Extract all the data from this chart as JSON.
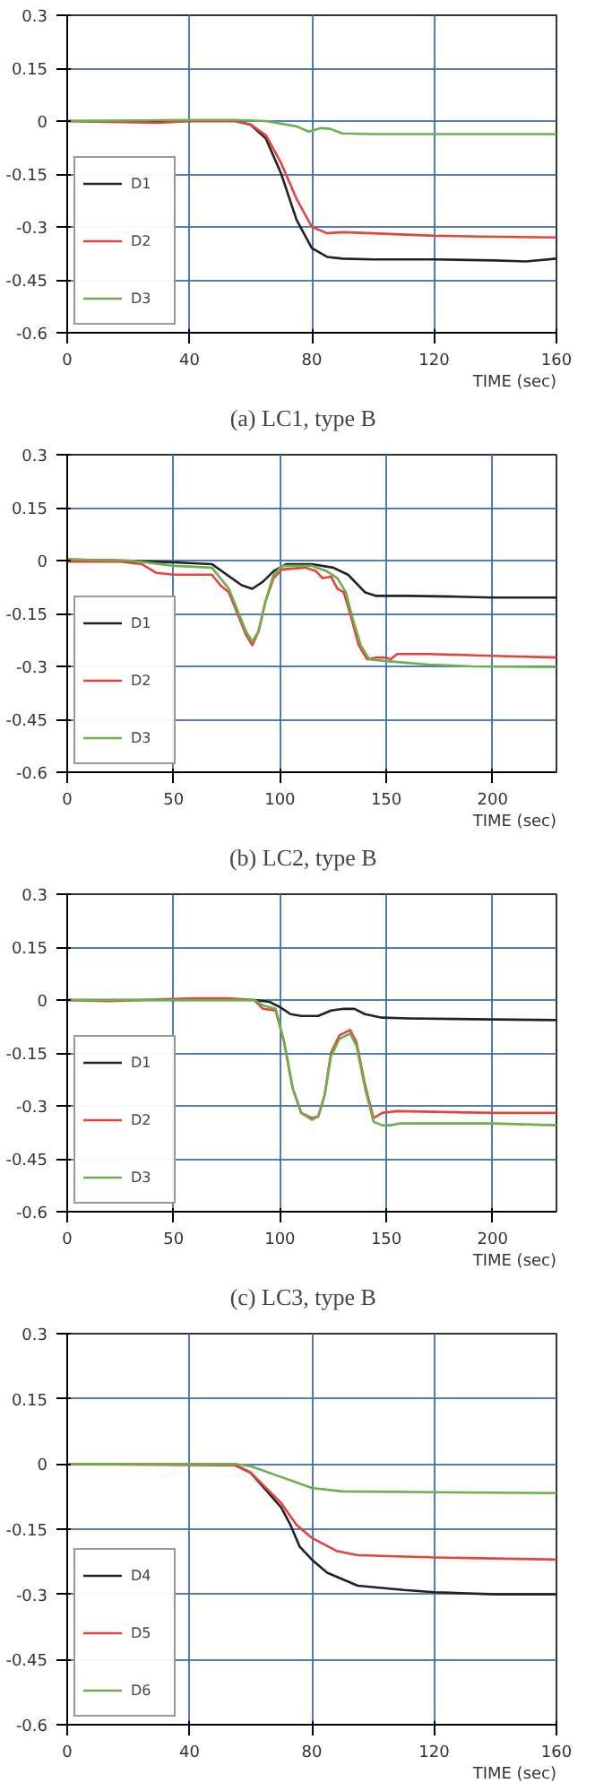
{
  "chart_data": [
    {
      "type": "line",
      "title": "(a)  LC1,  type  B",
      "xlabel": "TIME (sec)",
      "xlim": [
        0,
        160
      ],
      "xticks": [
        0,
        40,
        80,
        120,
        160
      ],
      "ylim": [
        -0.6,
        0.3
      ],
      "yticks": [
        -0.6,
        -0.45,
        -0.3,
        -0.15,
        0,
        0.15,
        0.3
      ],
      "grid": true,
      "legend": "bottom left",
      "marker": "none",
      "line_style": "solid",
      "series": [
        {
          "name": "D1",
          "color": "#222222",
          "x": [
            0,
            55,
            60,
            65,
            70,
            75,
            80,
            85,
            90,
            100,
            120,
            140,
            150,
            160
          ],
          "values": [
            0,
            0,
            -0.01,
            -0.05,
            -0.15,
            -0.28,
            -0.36,
            -0.385,
            -0.39,
            -0.392,
            -0.392,
            -0.395,
            -0.398,
            -0.39
          ]
        },
        {
          "name": "D2",
          "color": "#e8423a",
          "x": [
            0,
            30,
            40,
            55,
            60,
            65,
            70,
            75,
            80,
            85,
            90,
            100,
            120,
            140,
            160
          ],
          "values": [
            0,
            -0.005,
            0,
            0,
            -0.01,
            -0.04,
            -0.12,
            -0.22,
            -0.3,
            -0.318,
            -0.315,
            -0.318,
            -0.325,
            -0.328,
            -0.33
          ]
        },
        {
          "name": "D3",
          "color": "#6ab04c",
          "x": [
            0,
            40,
            55,
            65,
            75,
            79,
            83,
            86,
            90,
            100,
            120,
            160
          ],
          "values": [
            0,
            0.003,
            0.003,
            0,
            -0.015,
            -0.03,
            -0.02,
            -0.022,
            -0.035,
            -0.037,
            -0.037,
            -0.037
          ]
        }
      ]
    },
    {
      "type": "line",
      "title": "(b)  LC2,  type  B",
      "xlabel": "TIME (sec)",
      "xlim": [
        0,
        230
      ],
      "xticks": [
        0,
        50,
        100,
        150,
        200
      ],
      "ylim": [
        -0.6,
        0.3
      ],
      "yticks": [
        -0.6,
        -0.45,
        -0.3,
        -0.15,
        0,
        0.15,
        0.3
      ],
      "grid": true,
      "legend": "bottom left",
      "marker": "none",
      "line_style": "solid",
      "series": [
        {
          "name": "D1",
          "color": "#222222",
          "x": [
            0,
            25,
            50,
            68,
            75,
            82,
            87,
            92,
            97,
            103,
            115,
            125,
            132,
            140,
            145,
            160,
            180,
            200,
            230
          ],
          "values": [
            0.003,
            0,
            -0.005,
            -0.01,
            -0.04,
            -0.07,
            -0.08,
            -0.06,
            -0.03,
            -0.01,
            -0.01,
            -0.02,
            -0.04,
            -0.09,
            -0.1,
            -0.1,
            -0.102,
            -0.105,
            -0.105
          ]
        },
        {
          "name": "D2",
          "color": "#e8423a",
          "x": [
            0,
            25,
            35,
            42,
            50,
            68,
            72,
            76,
            80,
            84,
            87,
            90,
            93,
            97,
            101,
            112,
            117,
            120,
            124,
            127,
            130,
            133,
            137,
            141,
            145,
            150,
            152,
            155,
            170,
            200,
            230
          ],
          "values": [
            -0.003,
            -0.003,
            -0.01,
            -0.035,
            -0.04,
            -0.04,
            -0.07,
            -0.09,
            -0.15,
            -0.21,
            -0.24,
            -0.2,
            -0.12,
            -0.05,
            -0.025,
            -0.02,
            -0.03,
            -0.05,
            -0.045,
            -0.08,
            -0.09,
            -0.15,
            -0.24,
            -0.28,
            -0.275,
            -0.275,
            -0.28,
            -0.265,
            -0.265,
            -0.27,
            -0.275
          ]
        },
        {
          "name": "D3",
          "color": "#6ab04c",
          "x": [
            0,
            30,
            50,
            68,
            72,
            76,
            80,
            84,
            87,
            90,
            93,
            97,
            101,
            115,
            122,
            127,
            131,
            134,
            138,
            142,
            150,
            170,
            190,
            230
          ],
          "values": [
            0.003,
            0,
            -0.015,
            -0.02,
            -0.05,
            -0.08,
            -0.14,
            -0.2,
            -0.23,
            -0.2,
            -0.12,
            -0.04,
            -0.015,
            -0.015,
            -0.03,
            -0.05,
            -0.09,
            -0.16,
            -0.24,
            -0.28,
            -0.285,
            -0.295,
            -0.3,
            -0.302
          ]
        }
      ]
    },
    {
      "type": "line",
      "title": "(c)  LC3,  type  B",
      "xlabel": "TIME (sec)",
      "xlim": [
        0,
        230
      ],
      "xticks": [
        0,
        50,
        100,
        150,
        200
      ],
      "ylim": [
        -0.6,
        0.3
      ],
      "yticks": [
        -0.6,
        -0.45,
        -0.3,
        -0.15,
        0,
        0.15,
        0.3
      ],
      "grid": true,
      "legend": "bottom left",
      "marker": "none",
      "line_style": "solid",
      "series": [
        {
          "name": "D1",
          "color": "#222222",
          "x": [
            0,
            88,
            95,
            100,
            105,
            110,
            118,
            124,
            130,
            135,
            140,
            148,
            160,
            200,
            230
          ],
          "values": [
            0,
            0,
            -0.005,
            -0.02,
            -0.04,
            -0.045,
            -0.045,
            -0.03,
            -0.025,
            -0.025,
            -0.04,
            -0.05,
            -0.052,
            -0.055,
            -0.057
          ]
        },
        {
          "name": "D2",
          "color": "#e8423a",
          "x": [
            0,
            20,
            50,
            60,
            75,
            88,
            92,
            98,
            102,
            106,
            110,
            115,
            118,
            121,
            124,
            128,
            133,
            136,
            140,
            144,
            148,
            155,
            200,
            230
          ],
          "values": [
            0,
            -0.003,
            0.003,
            0.005,
            0.005,
            0,
            -0.025,
            -0.03,
            -0.12,
            -0.25,
            -0.32,
            -0.335,
            -0.33,
            -0.27,
            -0.15,
            -0.1,
            -0.085,
            -0.12,
            -0.24,
            -0.335,
            -0.32,
            -0.315,
            -0.32,
            -0.32
          ]
        },
        {
          "name": "D3",
          "color": "#6ab04c",
          "x": [
            0,
            50,
            88,
            92,
            98,
            102,
            106,
            110,
            115,
            118,
            121,
            124,
            128,
            133,
            136,
            140,
            144,
            148,
            152,
            156,
            200,
            230
          ],
          "values": [
            0,
            0,
            0,
            -0.015,
            -0.025,
            -0.12,
            -0.25,
            -0.32,
            -0.34,
            -0.33,
            -0.27,
            -0.16,
            -0.11,
            -0.095,
            -0.13,
            -0.25,
            -0.345,
            -0.355,
            -0.355,
            -0.35,
            -0.35,
            -0.355
          ]
        }
      ]
    },
    {
      "type": "line",
      "xlabel": "TIME (sec)",
      "xlim": [
        0,
        160
      ],
      "xticks": [
        0,
        40,
        80,
        120,
        160
      ],
      "ylim": [
        -0.6,
        0.3
      ],
      "yticks": [
        -0.6,
        -0.45,
        -0.3,
        -0.15,
        0,
        0.15,
        0.3
      ],
      "grid": true,
      "legend": "bottom left",
      "marker": "none",
      "line_style": "solid",
      "series": [
        {
          "name": "D4",
          "color": "#222222",
          "x": [
            0,
            50,
            55,
            60,
            65,
            70,
            73,
            76,
            80,
            85,
            95,
            110,
            120,
            140,
            160
          ],
          "values": [
            0,
            0,
            -0.003,
            -0.02,
            -0.06,
            -0.1,
            -0.14,
            -0.19,
            -0.22,
            -0.25,
            -0.28,
            -0.29,
            -0.295,
            -0.3,
            -0.3
          ]
        },
        {
          "name": "D5",
          "color": "#e8423a",
          "x": [
            0,
            55,
            60,
            65,
            70,
            75,
            80,
            88,
            95,
            120,
            160
          ],
          "values": [
            0,
            -0.003,
            -0.02,
            -0.055,
            -0.09,
            -0.14,
            -0.17,
            -0.2,
            -0.21,
            -0.215,
            -0.22
          ]
        },
        {
          "name": "D6",
          "color": "#6ab04c",
          "x": [
            0,
            55,
            60,
            70,
            80,
            90,
            120,
            160
          ],
          "values": [
            0,
            0,
            -0.005,
            -0.03,
            -0.055,
            -0.063,
            -0.065,
            -0.067
          ]
        }
      ]
    }
  ]
}
